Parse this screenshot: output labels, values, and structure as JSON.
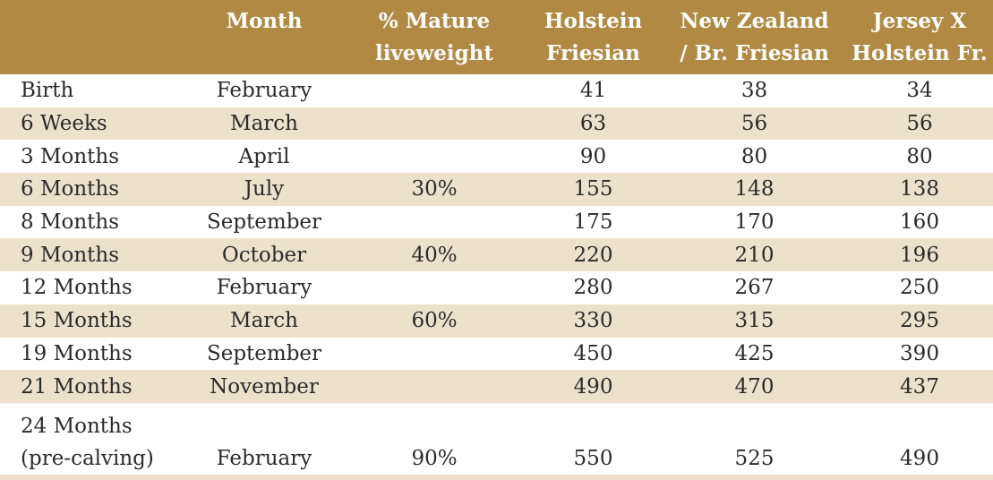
{
  "headers": [
    "",
    "Month",
    "% Mature\nliveweight",
    "Holstein\nFriesian",
    "New Zealand\n/ Br. Friesian",
    "Jersey X\nHolstein Fr."
  ],
  "rows": [
    {
      "age": "Birth",
      "month": "February",
      "mature": "",
      "holstein": "41",
      "nz": "38",
      "jersey": "34"
    },
    {
      "age": "6 Weeks",
      "month": "March",
      "mature": "",
      "holstein": "63",
      "nz": "56",
      "jersey": "56"
    },
    {
      "age": "3 Months",
      "month": "April",
      "mature": "",
      "holstein": "90",
      "nz": "80",
      "jersey": "80"
    },
    {
      "age": "6 Months",
      "month": "July",
      "mature": "30%",
      "holstein": "155",
      "nz": "148",
      "jersey": "138"
    },
    {
      "age": "8 Months",
      "month": "September",
      "mature": "",
      "holstein": "175",
      "nz": "170",
      "jersey": "160"
    },
    {
      "age": "9 Months",
      "month": "October",
      "mature": "40%",
      "holstein": "220",
      "nz": "210",
      "jersey": "196"
    },
    {
      "age": "12 Months",
      "month": "February",
      "mature": "",
      "holstein": "280",
      "nz": "267",
      "jersey": "250"
    },
    {
      "age": "15 Months",
      "month": "March",
      "mature": "60%",
      "holstein": "330",
      "nz": "315",
      "jersey": "295"
    },
    {
      "age": "19 Months",
      "month": "September",
      "mature": "",
      "holstein": "450",
      "nz": "425",
      "jersey": "390"
    },
    {
      "age": "21 Months",
      "month": "November",
      "mature": "",
      "holstein": "490",
      "nz": "470",
      "jersey": "437"
    },
    {
      "age": "24 Months\n(pre-calving)",
      "month": "February",
      "mature": "90%",
      "holstein": "550",
      "nz": "525",
      "jersey": "490"
    }
  ],
  "colors": {
    "header_bg": "#b08a42",
    "stripe_bg": "#ede1cc",
    "header_text": "#ffffff"
  }
}
